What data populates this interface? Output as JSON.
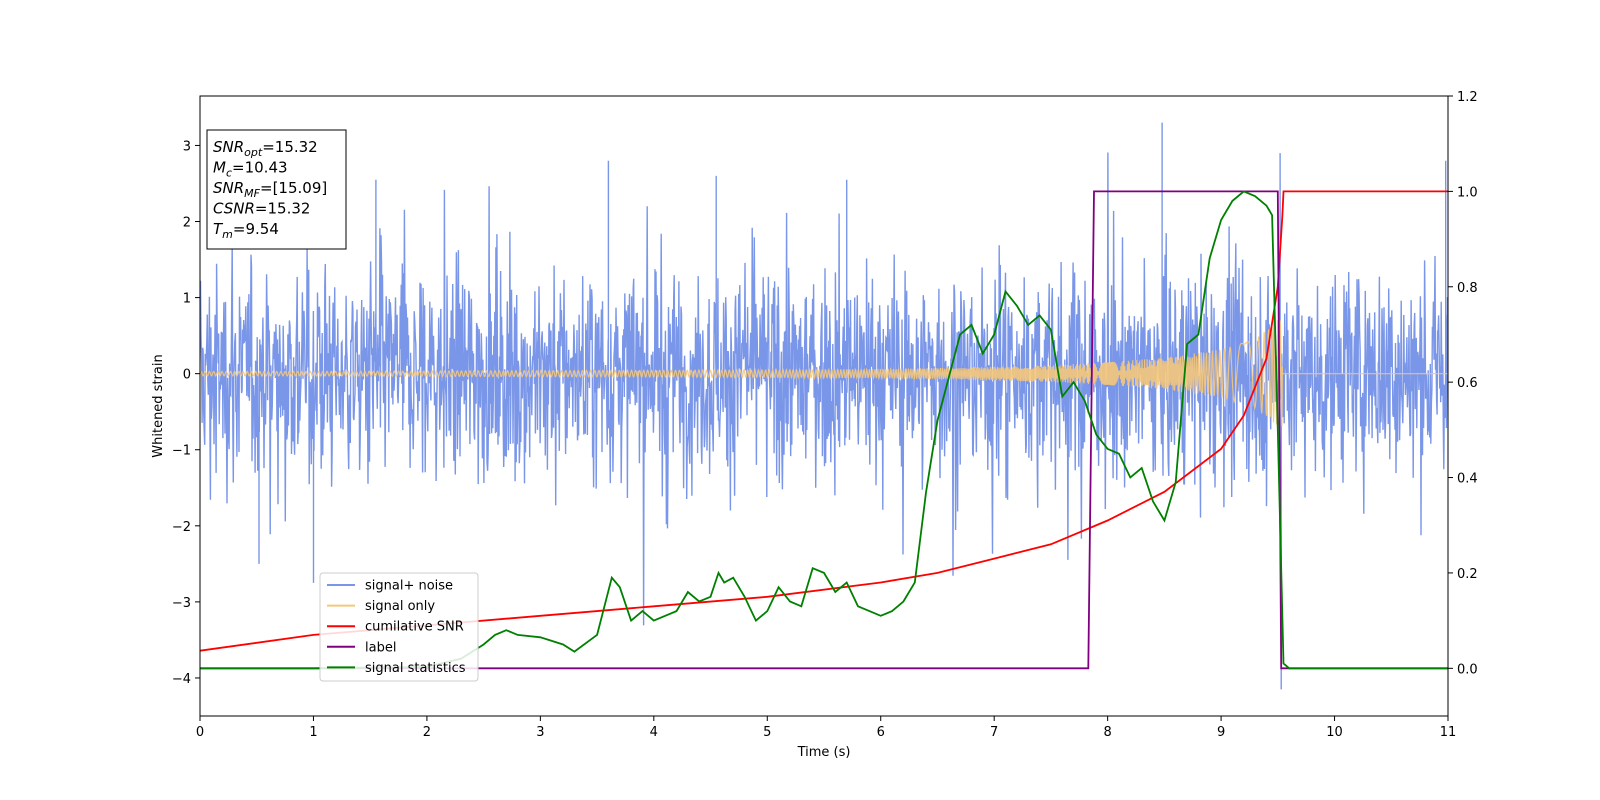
{
  "chart_data": {
    "type": "line",
    "xlabel": "Time (s)",
    "ylabel": "Whitened strain",
    "xlim": [
      0,
      11
    ],
    "ylim": [
      -4.5,
      3.65
    ],
    "y2lim": [
      -0.1,
      1.2
    ],
    "grid": false,
    "x_ticks": [
      0,
      1,
      2,
      3,
      4,
      5,
      6,
      7,
      8,
      9,
      10,
      11
    ],
    "y_ticks": [
      -4,
      -3,
      -2,
      -1,
      0,
      1,
      2,
      3
    ],
    "y_tick_labels": [
      "−4",
      "−3",
      "−2",
      "−1",
      "0",
      "1",
      "2",
      "3"
    ],
    "y2_ticks": [
      0.0,
      0.2,
      0.4,
      0.6,
      0.8,
      1.0,
      1.2
    ],
    "y2_tick_labels": [
      "0.0",
      "0.2",
      "0.4",
      "0.6",
      "0.8",
      "1.0",
      "1.2"
    ],
    "info_box": {
      "lines": [
        {
          "symbol": "SNR",
          "sub": "opt",
          "value": "=15.32"
        },
        {
          "symbol": "M",
          "sub": "c",
          "value": "=10.43"
        },
        {
          "symbol": "SNR",
          "sub": "MF",
          "value": "=[15.09]"
        },
        {
          "symbol": "CSNR",
          "sub": "",
          "value": "=15.32"
        },
        {
          "symbol": "T",
          "sub": "m",
          "value": "=9.54"
        }
      ]
    },
    "legend": {
      "position": "lower-left",
      "entries": [
        {
          "label": "signal+ noise",
          "color": "#7a96e8"
        },
        {
          "label": "signal only",
          "color": "#f5c77a"
        },
        {
          "label": "cumilative SNR",
          "color": "#ff0000"
        },
        {
          "label": "label",
          "color": "#800080"
        },
        {
          "label": "signal statistics",
          "color": "#008000"
        }
      ]
    },
    "series": [
      {
        "name": "signal+ noise",
        "axis": "left",
        "color": "#7a96e8",
        "fill_band": true,
        "x": [
          0,
          9.54,
          9.56,
          11
        ],
        "envelope_upper": [
          1.35,
          1.35,
          1.35,
          1.35
        ],
        "envelope_lower": [
          -1.35,
          -1.35,
          -1.35,
          -1.35
        ],
        "peak_spikes": [
          {
            "x": 0.52,
            "y": -2.5
          },
          {
            "x": 1.0,
            "y": -2.75
          },
          {
            "x": 1.55,
            "y": 2.55
          },
          {
            "x": 3.6,
            "y": 2.8
          },
          {
            "x": 4.55,
            "y": 2.6
          },
          {
            "x": 5.7,
            "y": 2.55
          },
          {
            "x": 8.48,
            "y": 3.3
          },
          {
            "x": 9.52,
            "y": 2.9
          },
          {
            "x": 9.53,
            "y": -4.15
          },
          {
            "x": 10.98,
            "y": 2.8
          }
        ]
      },
      {
        "name": "signal only",
        "axis": "left",
        "color": "#f5c77a",
        "x": [
          0,
          1,
          2,
          3,
          4,
          5,
          6,
          7,
          7.5,
          8,
          8.5,
          9,
          9.3,
          9.54
        ],
        "envelope": [
          0.03,
          0.03,
          0.035,
          0.04,
          0.045,
          0.05,
          0.06,
          0.09,
          0.11,
          0.15,
          0.21,
          0.32,
          0.45,
          0.75
        ]
      },
      {
        "name": "cumilative SNR",
        "axis": "right",
        "color": "#ff0000",
        "x": [
          0,
          1,
          2,
          3,
          4,
          5,
          6,
          6.5,
          7,
          7.5,
          8,
          8.5,
          9,
          9.2,
          9.4,
          9.5,
          9.54,
          9.55,
          11
        ],
        "values": [
          0.037,
          0.07,
          0.09,
          0.11,
          0.13,
          0.15,
          0.18,
          0.2,
          0.23,
          0.26,
          0.31,
          0.37,
          0.46,
          0.53,
          0.65,
          0.8,
          0.95,
          1.0,
          1.0
        ]
      },
      {
        "name": "label",
        "axis": "right",
        "color": "#800080",
        "x": [
          0,
          7.83,
          7.88,
          9.5,
          9.53,
          9.6,
          11
        ],
        "values": [
          0,
          0,
          1.0,
          1.0,
          0.0,
          0.0,
          0.0
        ]
      },
      {
        "name": "signal statistics",
        "axis": "right",
        "color": "#008000",
        "x": [
          0,
          1,
          2,
          2.3,
          2.5,
          2.6,
          2.7,
          2.8,
          3.0,
          3.2,
          3.3,
          3.5,
          3.63,
          3.7,
          3.8,
          3.9,
          4.0,
          4.1,
          4.2,
          4.3,
          4.4,
          4.5,
          4.57,
          4.62,
          4.7,
          4.8,
          4.9,
          5.0,
          5.1,
          5.2,
          5.3,
          5.4,
          5.5,
          5.6,
          5.7,
          5.8,
          5.9,
          6.0,
          6.1,
          6.2,
          6.3,
          6.4,
          6.5,
          6.6,
          6.7,
          6.8,
          6.9,
          7.0,
          7.1,
          7.2,
          7.3,
          7.4,
          7.5,
          7.6,
          7.7,
          7.8,
          7.9,
          8.0,
          8.1,
          8.2,
          8.3,
          8.4,
          8.5,
          8.6,
          8.7,
          8.8,
          8.9,
          9.0,
          9.1,
          9.2,
          9.3,
          9.4,
          9.45,
          9.5,
          9.55,
          9.6,
          11
        ],
        "values": [
          0.0,
          0.0,
          0.003,
          0.02,
          0.05,
          0.07,
          0.08,
          0.07,
          0.065,
          0.05,
          0.035,
          0.07,
          0.19,
          0.17,
          0.1,
          0.12,
          0.1,
          0.11,
          0.12,
          0.16,
          0.14,
          0.15,
          0.2,
          0.18,
          0.19,
          0.15,
          0.1,
          0.12,
          0.17,
          0.14,
          0.13,
          0.21,
          0.2,
          0.16,
          0.18,
          0.13,
          0.12,
          0.11,
          0.12,
          0.14,
          0.18,
          0.37,
          0.52,
          0.61,
          0.7,
          0.72,
          0.66,
          0.7,
          0.79,
          0.76,
          0.72,
          0.74,
          0.71,
          0.57,
          0.6,
          0.56,
          0.49,
          0.46,
          0.45,
          0.4,
          0.42,
          0.35,
          0.31,
          0.39,
          0.68,
          0.7,
          0.86,
          0.94,
          0.98,
          1.0,
          0.99,
          0.97,
          0.95,
          0.5,
          0.01,
          0.0,
          0.0
        ]
      }
    ]
  }
}
